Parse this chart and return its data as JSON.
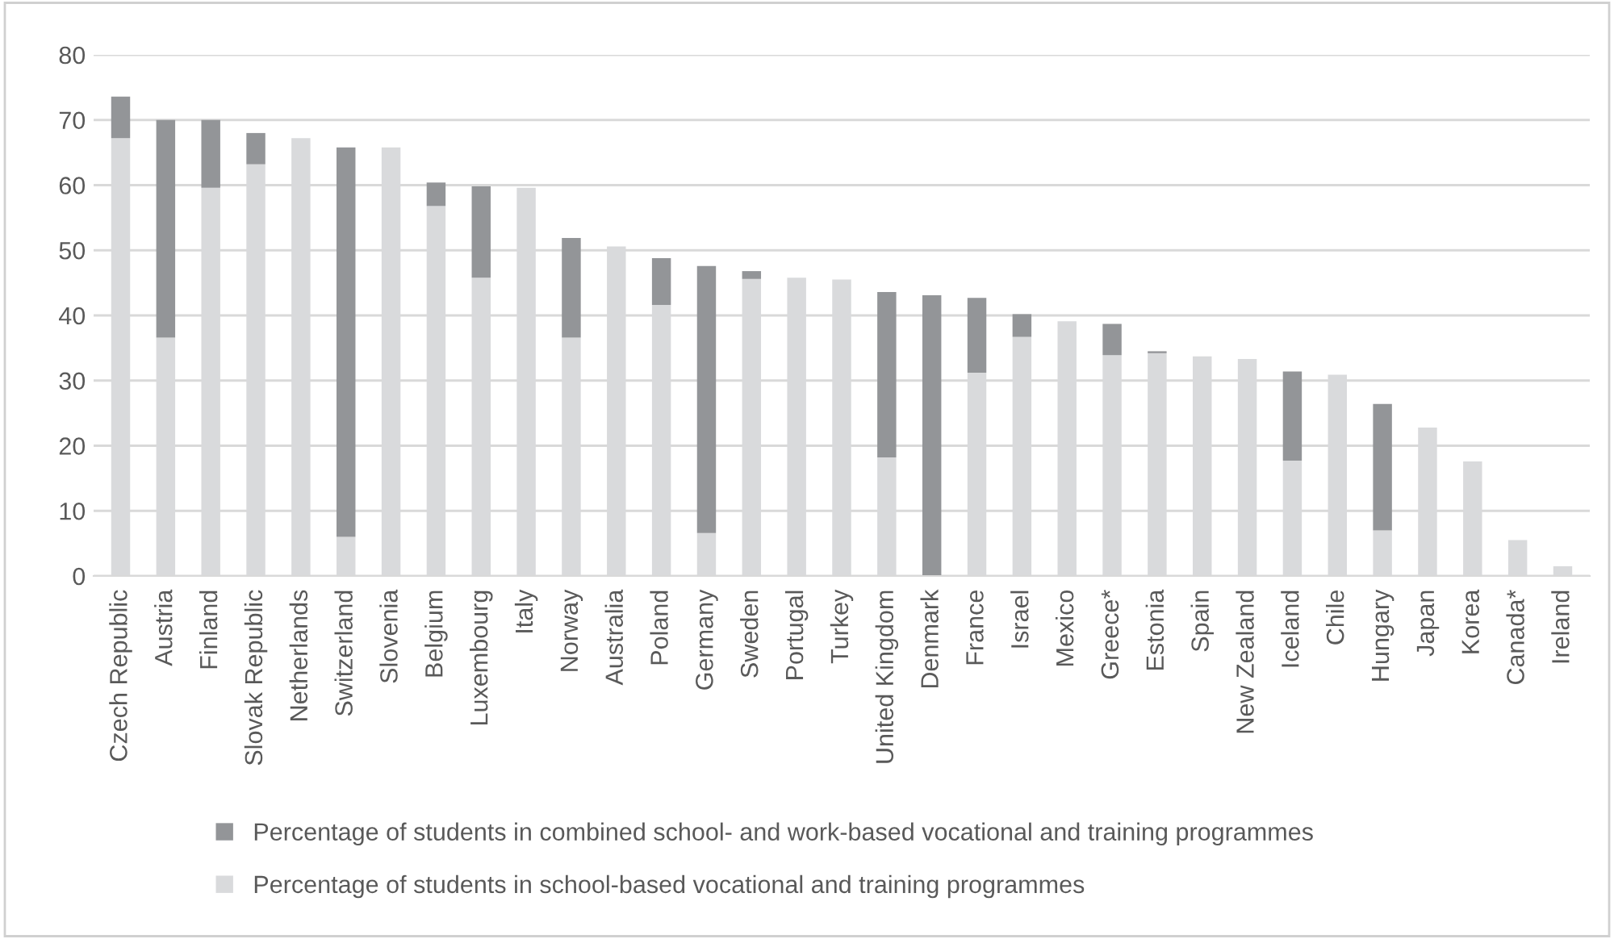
{
  "chart_data": {
    "type": "bar",
    "stacked": true,
    "categories": [
      "Czech Republic",
      "Austria",
      "Finland",
      "Slovak Republic",
      "Netherlands",
      "Switzerland",
      "Slovenia",
      "Belgium",
      "Luxembourg",
      "Italy",
      "Norway",
      "Australia",
      "Poland",
      "Germany",
      "Sweden",
      "Portugal",
      "Turkey",
      "United Kingdom",
      "Denmark",
      "France",
      "Israel",
      "Mexico",
      "Greece*",
      "Estonia",
      "Spain",
      "New Zealand",
      "Iceland",
      "Chile",
      "Hungary",
      "Japan",
      "Korea",
      "Canada*",
      "Ireland"
    ],
    "series": [
      {
        "name": "Percentage of students in school-based vocational and training programmes",
        "color": "#d9dadc",
        "values": [
          67.2,
          36.6,
          59.6,
          63.2,
          67.2,
          6.0,
          65.8,
          56.8,
          45.8,
          59.6,
          36.6,
          50.6,
          41.6,
          6.6,
          45.6,
          45.8,
          45.5,
          18.2,
          0,
          31.2,
          36.7,
          39.1,
          33.9,
          34.2,
          33.7,
          33.3,
          17.7,
          30.9,
          7.0,
          22.8,
          17.6,
          5.5,
          1.5
        ]
      },
      {
        "name": "Percentage of students in combined school- and work-based vocational and training programmes",
        "color": "#939598",
        "values": [
          6.4,
          33.4,
          10.4,
          4.8,
          0,
          59.8,
          0,
          3.6,
          14.0,
          0,
          15.3,
          0,
          7.2,
          41.0,
          1.2,
          0,
          0,
          25.4,
          43.1,
          11.5,
          3.5,
          0,
          4.8,
          0.3,
          0,
          0,
          13.7,
          0,
          19.4,
          0,
          0,
          0,
          0
        ]
      }
    ],
    "ylim": [
      0,
      80
    ],
    "yticks": [
      0,
      10,
      20,
      30,
      40,
      50,
      60,
      70,
      80
    ],
    "grid": "y",
    "legend": "bottom"
  }
}
